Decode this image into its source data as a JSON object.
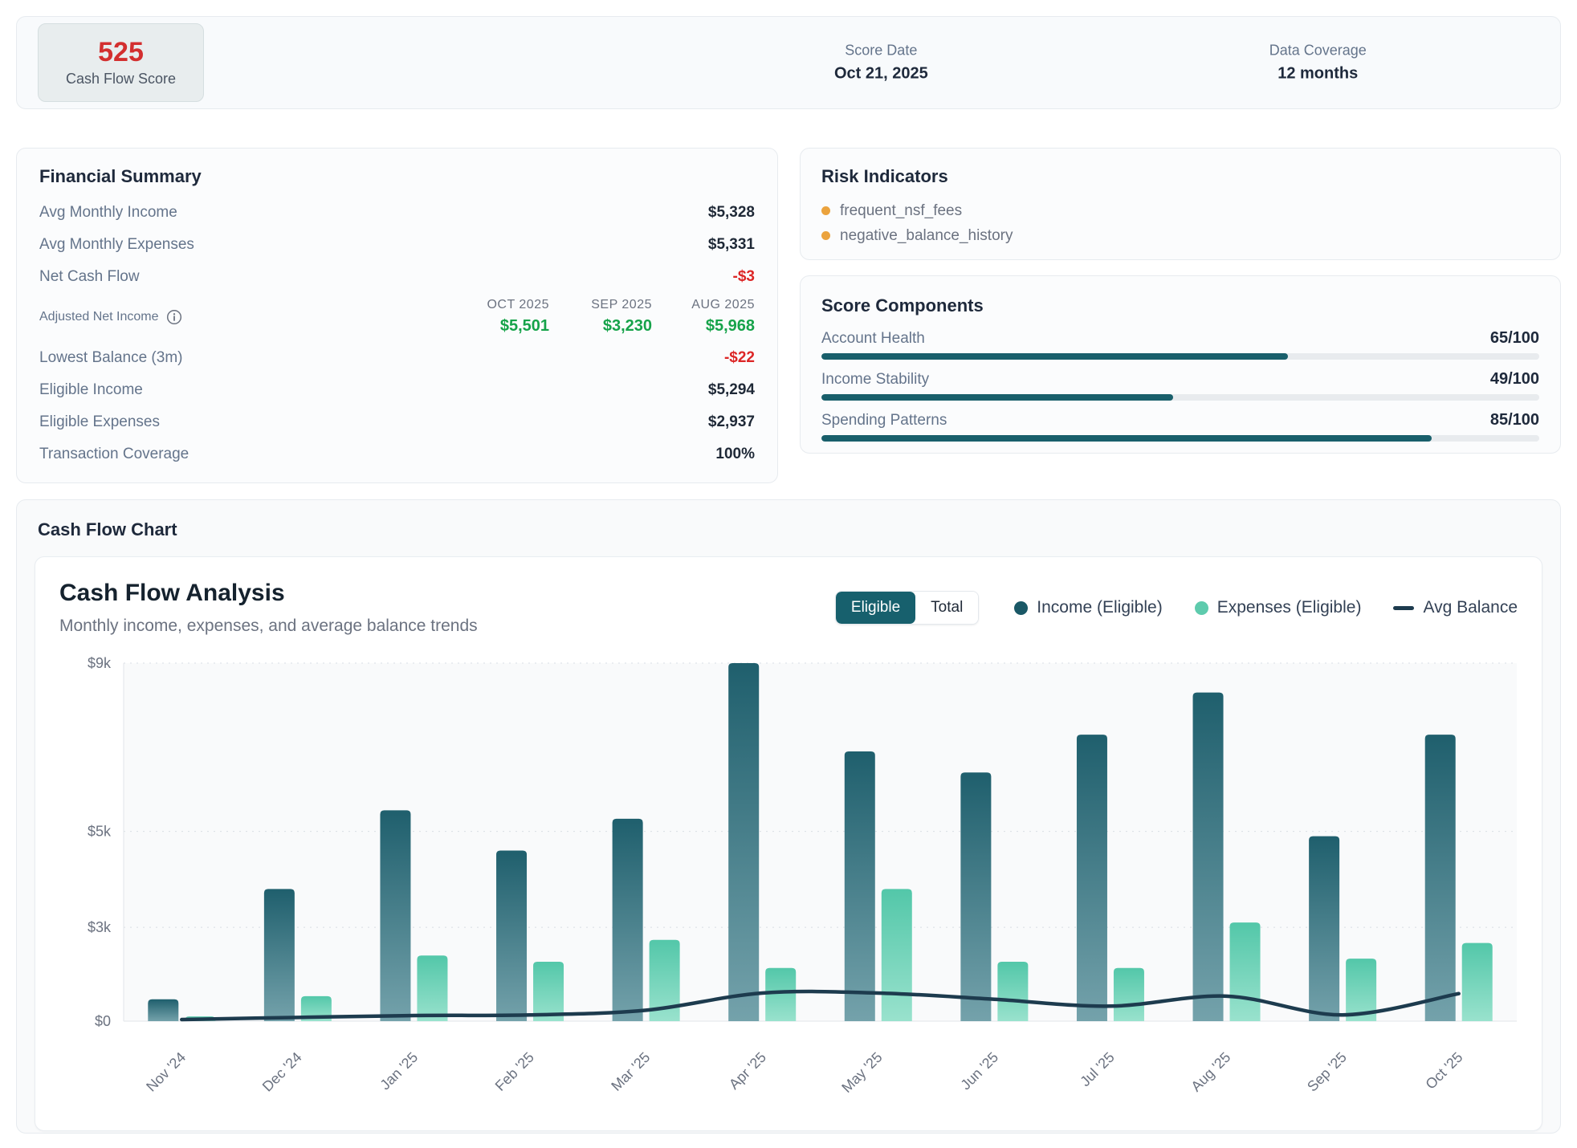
{
  "header": {
    "score_value": "525",
    "score_label": "Cash Flow Score",
    "score_date_label": "Score Date",
    "score_date_value": "Oct 21, 2025",
    "coverage_label": "Data Coverage",
    "coverage_value": "12 months"
  },
  "financial_summary": {
    "title": "Financial Summary",
    "rows": [
      {
        "label": "Avg Monthly Income",
        "value": "$5,328"
      },
      {
        "label": "Avg Monthly Expenses",
        "value": "$5,331"
      },
      {
        "label": "Net Cash Flow",
        "value": "-$3"
      },
      {
        "label": "Lowest Balance (3m)",
        "value": "-$22"
      },
      {
        "label": "Eligible Income",
        "value": "$5,294"
      },
      {
        "label": "Eligible Expenses",
        "value": "$2,937"
      },
      {
        "label": "Transaction Coverage",
        "value": "100%"
      }
    ],
    "adjusted": {
      "label": "Adjusted Net Income",
      "columns": [
        {
          "period": "OCT 2025",
          "value": "$5,501"
        },
        {
          "period": "SEP 2025",
          "value": "$3,230"
        },
        {
          "period": "AUG 2025",
          "value": "$5,968"
        }
      ]
    }
  },
  "risk_indicators": {
    "title": "Risk Indicators",
    "items": [
      "frequent_nsf_fees",
      "negative_balance_history"
    ]
  },
  "score_components": {
    "title": "Score Components",
    "items": [
      {
        "label": "Account Health",
        "score": 65,
        "max": 100,
        "display": "65/100"
      },
      {
        "label": "Income Stability",
        "score": 49,
        "max": 100,
        "display": "49/100"
      },
      {
        "label": "Spending Patterns",
        "score": 85,
        "max": 100,
        "display": "85/100"
      }
    ]
  },
  "chart_section": {
    "title": "Cash Flow Chart",
    "card_title": "Cash Flow Analysis",
    "card_subtitle": "Monthly income, expenses, and average balance trends",
    "toggle": {
      "options": [
        "Eligible",
        "Total"
      ],
      "active": "Eligible"
    },
    "legend": [
      {
        "label": "Income (Eligible)",
        "marker": "dot",
        "color": "#1a5866"
      },
      {
        "label": "Expenses (Eligible)",
        "marker": "dot",
        "color": "#5ecbad"
      },
      {
        "label": "Avg Balance",
        "marker": "line",
        "color": "#1d3b4e"
      }
    ]
  },
  "chart_data": {
    "type": "bar",
    "categories": [
      "Nov '24",
      "Dec '24",
      "Jan '25",
      "Feb '25",
      "Mar '25",
      "Apr '25",
      "May '25",
      "Jun '25",
      "Jul '25",
      "Aug '25",
      "Sep '25",
      "Oct '25"
    ],
    "series": [
      {
        "name": "Income (Eligible)",
        "type": "bar",
        "values": [
          700,
          3800,
          5500,
          4600,
          5300,
          9000,
          6900,
          6400,
          7300,
          8300,
          4900,
          7300
        ]
      },
      {
        "name": "Expenses (Eligible)",
        "type": "bar",
        "values": [
          150,
          800,
          2100,
          1900,
          2600,
          1700,
          3800,
          1900,
          1700,
          3100,
          2000,
          2500
        ]
      },
      {
        "name": "Avg Balance",
        "type": "line",
        "values": [
          50,
          120,
          180,
          200,
          350,
          900,
          900,
          700,
          480,
          800,
          200,
          880
        ]
      }
    ],
    "title": "Cash Flow Analysis",
    "xlabel": "",
    "ylabel": "",
    "ylim": [
      0,
      9000
    ],
    "ytick_values": [
      9000,
      5000,
      3000,
      0
    ],
    "ytick_labels": [
      "$9k",
      "$5k",
      "$3k",
      "$0"
    ],
    "grid": "dashed-horizontal",
    "legend_position": "top-right"
  },
  "colors": {
    "income_bar_top": "#1f5f6d",
    "income_bar_bottom": "#74a2ab",
    "expense_bar_top": "#53c7a9",
    "expense_bar_bottom": "#99e2cd",
    "avg_balance_line": "#1d3b4e",
    "progress_fill": "#195f6b",
    "risk_dot": "#eba33d",
    "negative_text": "#dc2626",
    "positive_text": "#16a34a",
    "score_text": "#d32f2f",
    "toggle_active_bg": "#17606d"
  }
}
